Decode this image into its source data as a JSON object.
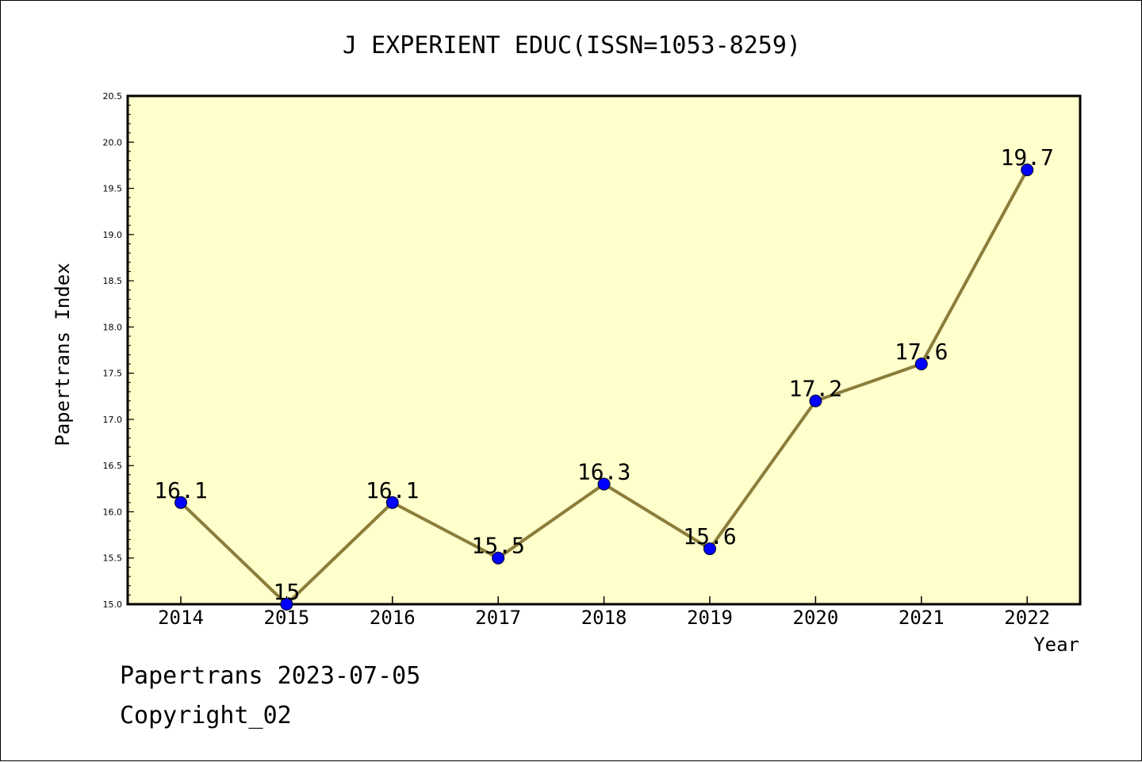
{
  "footer": {
    "line1": "Papertrans 2023-07-05",
    "line2": "Copyright_02"
  },
  "colors": {
    "plot_background": "#ffffcc",
    "line": "#8b7d3a",
    "marker": "#0000ff"
  },
  "chart_data": {
    "type": "line",
    "title": "J EXPERIENT EDUC(ISSN=1053-8259)",
    "xlabel": "Year",
    "ylabel": "Papertrans Index",
    "x": [
      "2014",
      "2015",
      "2016",
      "2017",
      "2018",
      "2019",
      "2020",
      "2021",
      "2022"
    ],
    "series": [
      {
        "values": [
          16.1,
          15,
          16.1,
          15.5,
          16.3,
          15.6,
          17.2,
          17.6,
          19.7
        ],
        "data_labels": [
          "16.1",
          "15",
          "16.1",
          "15.5",
          "16.3",
          "15.6",
          "17.2",
          "17.6",
          "19.7"
        ]
      }
    ],
    "ylim": [
      15.0,
      20.5
    ],
    "yticks": [
      "15.0",
      "15.5",
      "16.0",
      "16.5",
      "17.0",
      "17.5",
      "18.0",
      "18.5",
      "19.0",
      "19.5",
      "20.0",
      "20.5"
    ],
    "grid": false,
    "legend": "none"
  }
}
